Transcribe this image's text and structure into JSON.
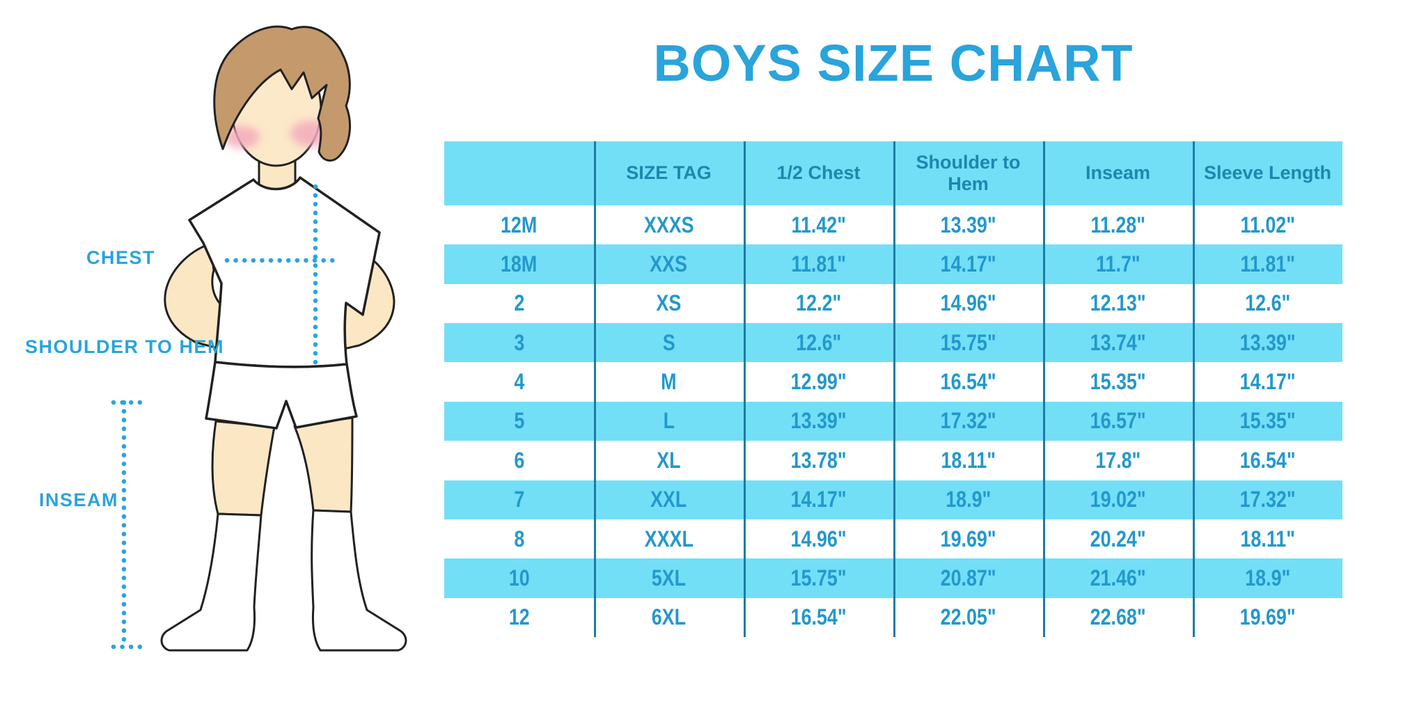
{
  "title": "BOYS SIZE CHART",
  "figure_labels": {
    "chest": "CHEST",
    "shoulder_to_hem": "SHOULDER TO HEM",
    "inseam": "INSEAM"
  },
  "chart_data": {
    "type": "table",
    "title": "BOYS SIZE CHART",
    "columns": [
      "",
      "SIZE TAG",
      "1/2 Chest",
      "Shoulder to Hem",
      "Inseam",
      "Sleeve Length"
    ],
    "rows": [
      [
        "12M",
        "XXXS",
        "11.42\"",
        "13.39\"",
        "11.28\"",
        "11.02\""
      ],
      [
        "18M",
        "XXS",
        "11.81\"",
        "14.17\"",
        "11.7\"",
        "11.81\""
      ],
      [
        "2",
        "XS",
        "12.2\"",
        "14.96\"",
        "12.13\"",
        "12.6\""
      ],
      [
        "3",
        "S",
        "12.6\"",
        "15.75\"",
        "13.74\"",
        "13.39\""
      ],
      [
        "4",
        "M",
        "12.99\"",
        "16.54\"",
        "15.35\"",
        "14.17\""
      ],
      [
        "5",
        "L",
        "13.39\"",
        "17.32\"",
        "16.57\"",
        "15.35\""
      ],
      [
        "6",
        "XL",
        "13.78\"",
        "18.11\"",
        "17.8\"",
        "16.54\""
      ],
      [
        "7",
        "XXL",
        "14.17\"",
        "18.9\"",
        "19.02\"",
        "17.32\""
      ],
      [
        "8",
        "XXXL",
        "14.96\"",
        "19.69\"",
        "20.24\"",
        "18.11\""
      ],
      [
        "10",
        "5XL",
        "15.75\"",
        "20.87\"",
        "21.46\"",
        "18.9\""
      ],
      [
        "12",
        "6XL",
        "16.54\"",
        "22.05\"",
        "22.68\"",
        "19.69\""
      ]
    ],
    "layout": {
      "alternating_row_shading": true,
      "shaded_rows": [
        "header",
        "18M",
        "3",
        "5",
        "7",
        "10"
      ],
      "vertical_dividers": true,
      "horizontal_dividers": false
    }
  },
  "colors": {
    "accent_blue": "#29a4dc",
    "table_band_cyan": "#72dff7",
    "table_divider_blue": "#1c7ba6",
    "header_text_blue": "#1f86ad",
    "cell_text_blue": "#2398cd",
    "skin": "#fbe7c3",
    "hair_brown": "#c49a6c",
    "blush_pink": "#f3abbc",
    "outline": "#212121"
  }
}
